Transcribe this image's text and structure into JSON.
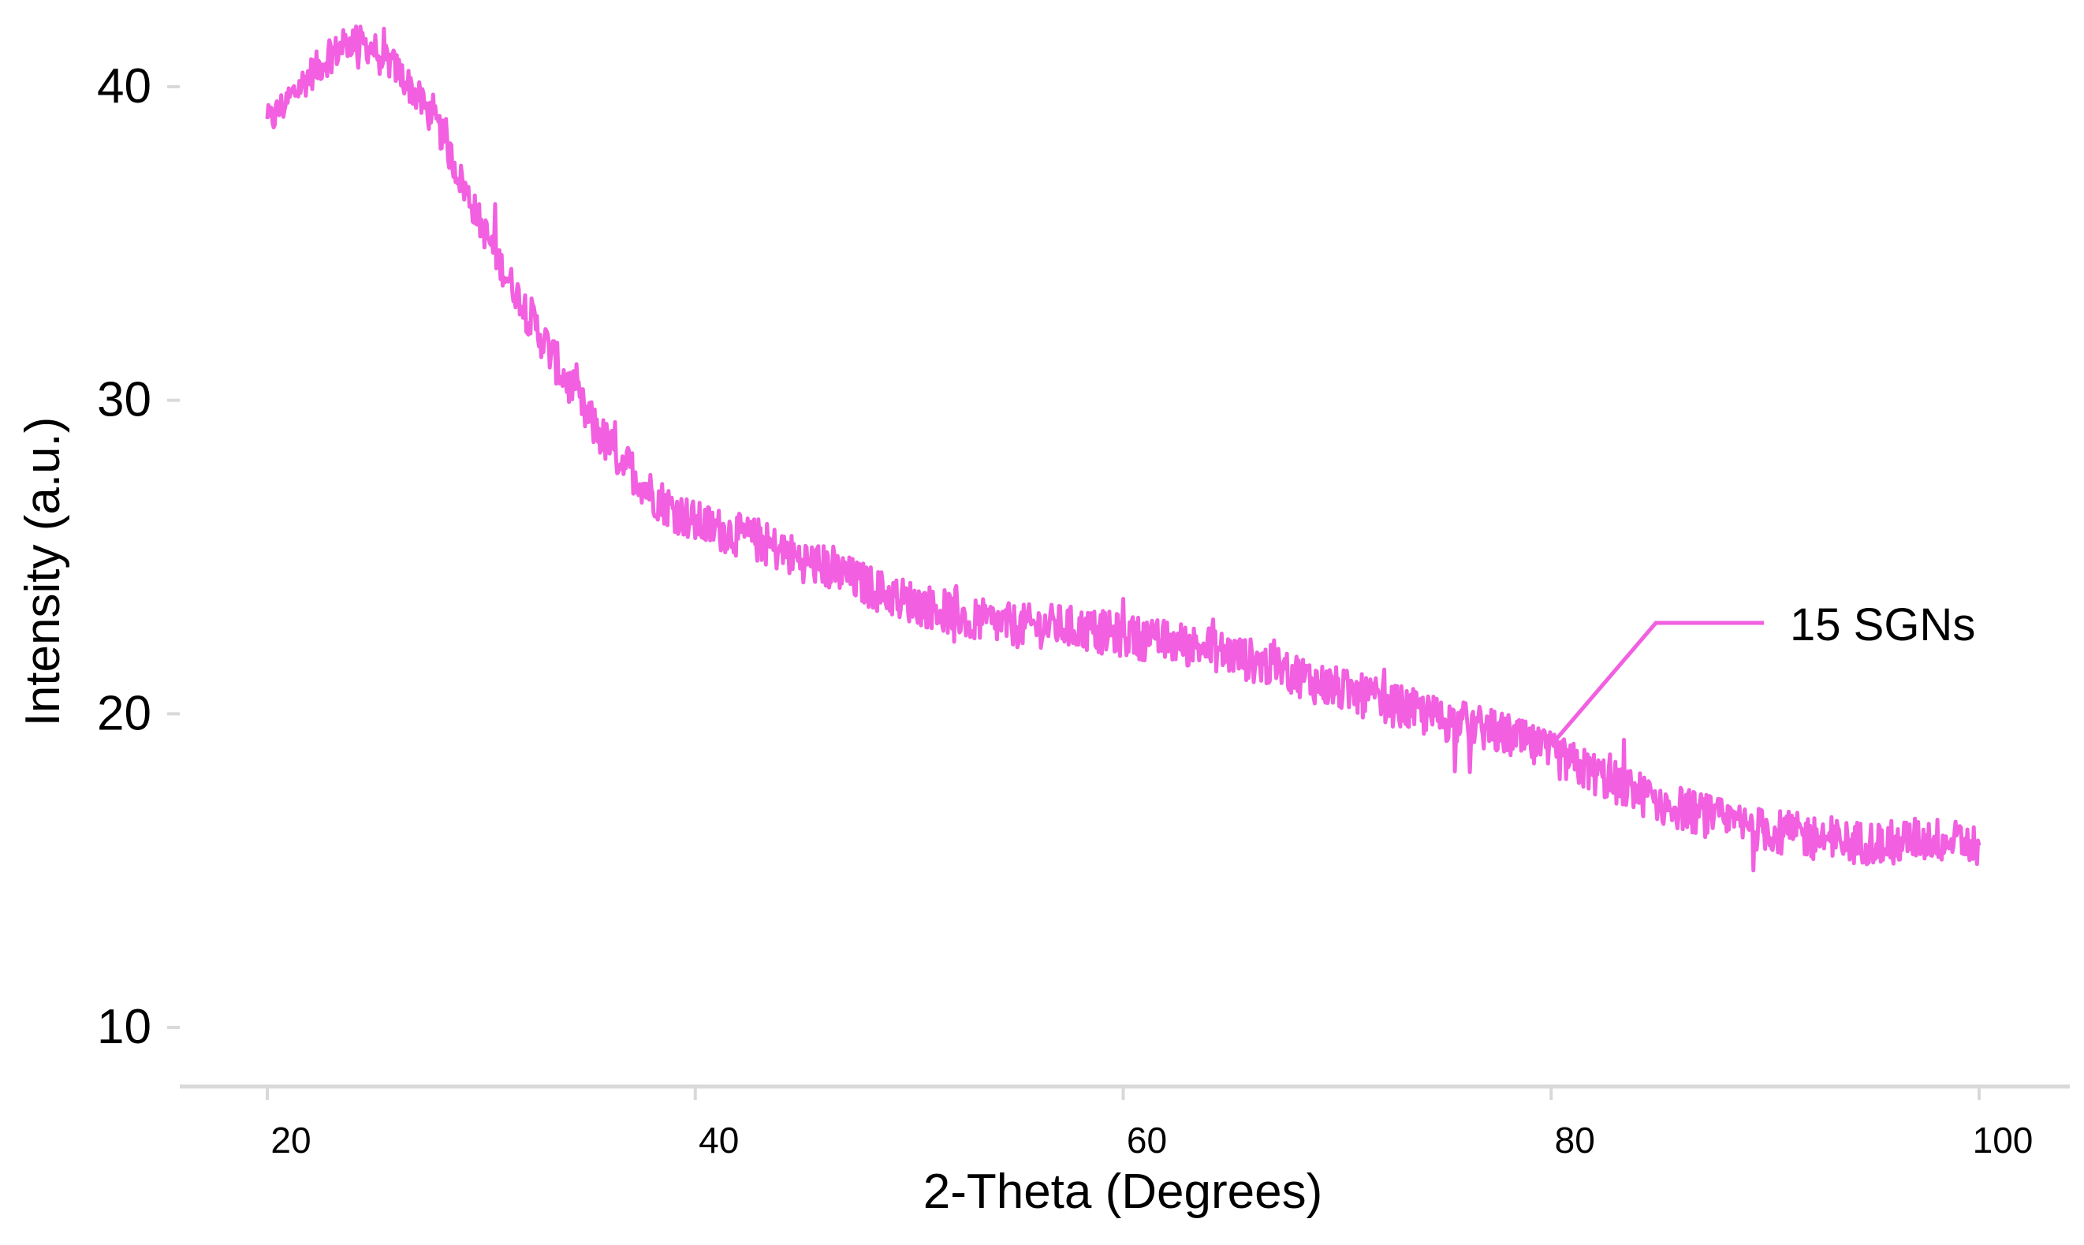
{
  "chart_data": {
    "type": "line",
    "xlabel": "2-Theta (Degrees)",
    "ylabel": "Intensity (a.u.)",
    "xlim": [
      15,
      102
    ],
    "ylim": [
      8,
      43
    ],
    "xticks": [
      20,
      40,
      60,
      80,
      100
    ],
    "yticks": [
      10,
      20,
      30,
      40
    ],
    "grid": false,
    "series": [
      {
        "name": "15 SGNs",
        "color": "#f25fe0",
        "annotation_x": 80,
        "x": [
          20,
          21,
          22,
          23,
          24,
          25,
          26,
          27,
          28,
          29,
          30,
          31,
          32,
          33,
          34,
          35,
          36,
          37,
          38,
          39,
          40,
          41,
          42,
          43,
          44,
          45,
          46,
          47,
          48,
          49,
          50,
          51,
          52,
          53,
          54,
          55,
          56,
          57,
          58,
          59,
          60,
          61,
          62,
          63,
          64,
          65,
          66,
          67,
          68,
          69,
          70,
          71,
          72,
          73,
          74,
          75,
          76,
          77,
          78,
          79,
          80,
          81,
          82,
          83,
          84,
          85,
          86,
          87,
          88,
          89,
          90,
          91,
          92,
          93,
          94,
          95,
          96,
          97,
          98,
          99,
          100
        ],
        "y": [
          38.8,
          39.6,
          40.4,
          41.0,
          41.5,
          41.2,
          40.6,
          39.7,
          38.7,
          37.1,
          35.6,
          34.2,
          33.0,
          31.8,
          30.6,
          29.4,
          28.5,
          27.8,
          27.0,
          26.5,
          26.1,
          25.9,
          25.7,
          25.5,
          25.2,
          24.9,
          24.7,
          24.4,
          24.1,
          23.8,
          23.6,
          23.4,
          23.2,
          23.0,
          22.9,
          22.8,
          22.8,
          22.8,
          22.7,
          22.6,
          22.5,
          22.4,
          22.3,
          22.2,
          22.1,
          21.9,
          21.7,
          21.5,
          21.3,
          21.0,
          20.8,
          20.6,
          20.4,
          20.2,
          20.0,
          19.8,
          19.7,
          19.5,
          19.3,
          19.0,
          18.7,
          18.4,
          18.1,
          17.8,
          17.5,
          17.2,
          17.0,
          16.8,
          16.6,
          16.4,
          16.3,
          16.2,
          16.1,
          16.0,
          15.9,
          15.9,
          15.9,
          16.0,
          16.0,
          15.9,
          15.8
        ]
      }
    ]
  }
}
